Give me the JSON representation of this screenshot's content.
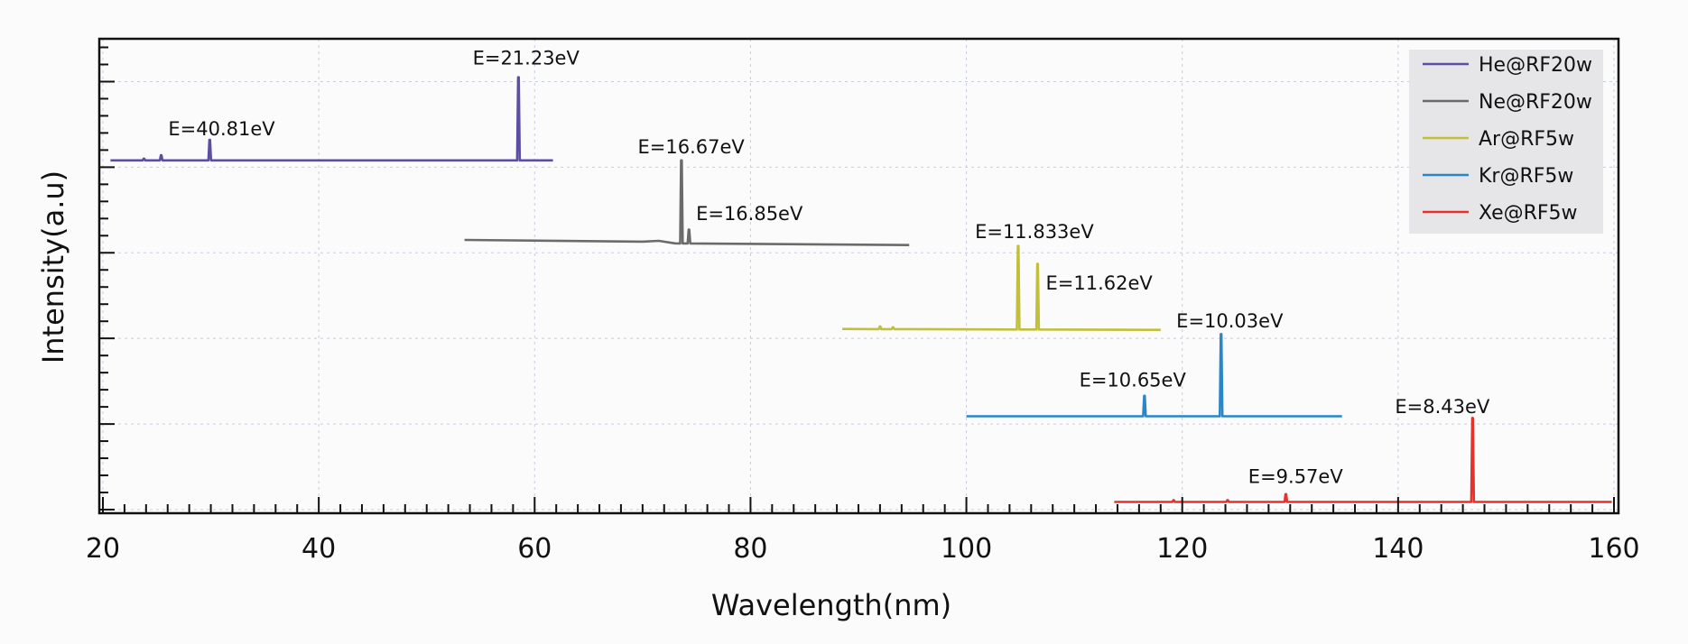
{
  "chart_data": {
    "type": "line",
    "title": "",
    "xlabel": "Wavelength(nm)",
    "ylabel": "Intensity(a.u)",
    "xlim": [
      20,
      160
    ],
    "ylim": [
      0,
      5.5
    ],
    "x_ticks": [
      20,
      40,
      60,
      80,
      100,
      120,
      140,
      160
    ],
    "x_minor_step": 2,
    "y_tick_labels_shown": false,
    "y_major_ticks": [
      0,
      1,
      2,
      3,
      4,
      5
    ],
    "y_minor_step": 0.2,
    "grid": true,
    "legend_position": "top-right",
    "series": [
      {
        "name": "He@RF20w",
        "color": "#5b4fa3",
        "baseline": [
          [
            20.7,
            4.08
          ],
          [
            61.7,
            4.08
          ]
        ],
        "peaks": [
          [
            23.8,
            4.1
          ],
          [
            25.4,
            4.14
          ],
          [
            29.9,
            4.32
          ],
          [
            58.5,
            5.05
          ]
        ]
      },
      {
        "name": "Ne@RF20w",
        "color": "#6b6b6b",
        "baseline": [
          [
            53.5,
            3.15
          ],
          [
            70.0,
            3.13
          ],
          [
            71.5,
            3.14
          ],
          [
            73.0,
            3.11
          ],
          [
            94.7,
            3.09
          ]
        ],
        "peaks": [
          [
            73.6,
            4.08
          ],
          [
            74.3,
            3.27
          ]
        ]
      },
      {
        "name": "Ar@RF5w",
        "color": "#c2bf3a",
        "baseline": [
          [
            88.5,
            2.11
          ],
          [
            118.0,
            2.1
          ]
        ],
        "peaks": [
          [
            92.0,
            2.14
          ],
          [
            93.2,
            2.13
          ],
          [
            104.8,
            3.08
          ],
          [
            106.6,
            2.87
          ]
        ]
      },
      {
        "name": "Kr@RF5w",
        "color": "#2a86c6",
        "baseline": [
          [
            100.0,
            1.09
          ],
          [
            134.8,
            1.09
          ]
        ],
        "peaks": [
          [
            116.5,
            1.33
          ],
          [
            123.6,
            2.05
          ]
        ]
      },
      {
        "name": "Xe@RF5w",
        "color": "#e8302d",
        "baseline": [
          [
            113.7,
            0.09
          ],
          [
            159.8,
            0.09
          ]
        ],
        "peaks": [
          [
            119.2,
            0.11
          ],
          [
            124.2,
            0.11
          ],
          [
            129.6,
            0.18
          ],
          [
            146.9,
            1.07
          ]
        ]
      }
    ],
    "annotations": [
      {
        "text": "E=21.23eV",
        "x": 59.2,
        "y": 5.2
      },
      {
        "text": "E=40.81eV",
        "x": 31.0,
        "y": 4.37
      },
      {
        "text": "E=16.67eV",
        "x": 74.5,
        "y": 4.16
      },
      {
        "text": "E=16.85eV",
        "x": 79.9,
        "y": 3.38
      },
      {
        "text": "E=11.833eV",
        "x": 106.3,
        "y": 3.17
      },
      {
        "text": "E=11.62eV",
        "x": 112.3,
        "y": 2.57
      },
      {
        "text": "E=10.03eV",
        "x": 124.4,
        "y": 2.13
      },
      {
        "text": "E=10.65eV",
        "x": 115.4,
        "y": 1.44
      },
      {
        "text": "E=8.43eV",
        "x": 144.1,
        "y": 1.13
      },
      {
        "text": "E=9.57eV",
        "x": 130.5,
        "y": 0.31
      }
    ]
  }
}
